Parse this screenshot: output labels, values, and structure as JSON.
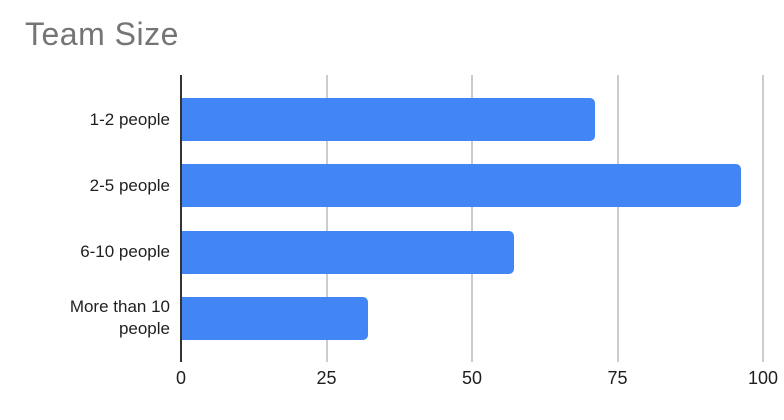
{
  "chart_data": {
    "type": "bar",
    "orientation": "horizontal",
    "title": "Team Size",
    "categories": [
      "1-2 people",
      "2-5 people",
      "6-10 people",
      "More than 10 people"
    ],
    "values": [
      71,
      96,
      57,
      32
    ],
    "xlabel": "",
    "ylabel": "",
    "xlim": [
      0,
      100
    ],
    "xticks": [
      0,
      25,
      50,
      75,
      100
    ],
    "grid": true,
    "legend_position": "none",
    "colors": {
      "bar": "#4285f4",
      "title": "#757575",
      "gridline": "#cccccc",
      "axis_baseline": "#333333",
      "tick_label": "#1f1f1f",
      "category_label": "#1f1f1f",
      "background": "#ffffff"
    }
  }
}
